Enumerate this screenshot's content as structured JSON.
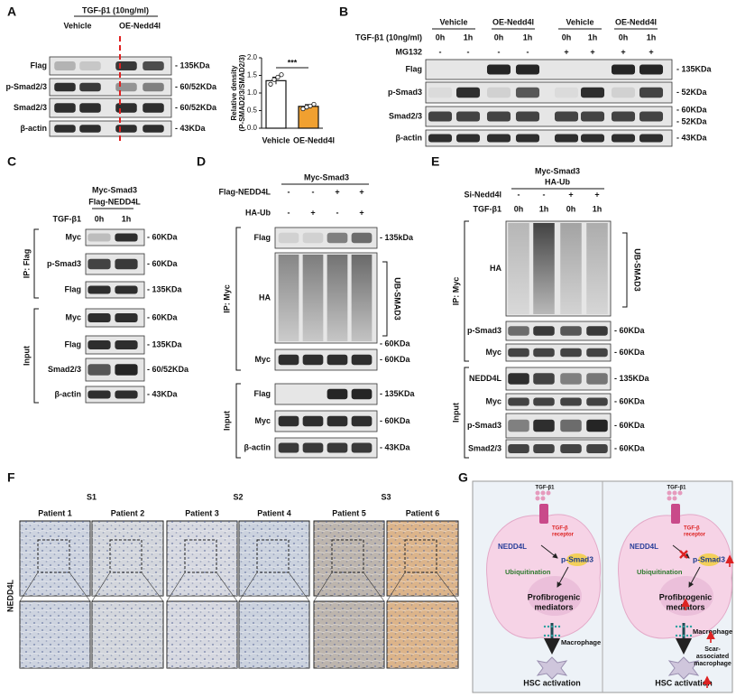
{
  "panel_A": {
    "letter": "A",
    "treatment": "TGF-β1 (10ng/ml)",
    "groups": [
      "Vehicle",
      "OE-Nedd4l"
    ],
    "rows": [
      {
        "label": "Flag",
        "sizes": [
          "- 135KDa"
        ]
      },
      {
        "label": "p-Smad2/3",
        "sizes": [
          "- 60/52KDa"
        ]
      },
      {
        "label": "Smad2/3",
        "sizes": [
          "- 60/52KDa"
        ]
      },
      {
        "label": "β-actin",
        "sizes": [
          "- 43KDa"
        ]
      }
    ]
  },
  "chart_data": {
    "type": "bar",
    "y_label": [
      "Relative density",
      "(P-SMAD2/3/SMAD2/3)"
    ],
    "categories": [
      "Vehicle",
      "OE-Nedd4l"
    ],
    "values": [
      1.35,
      0.62
    ],
    "errors": [
      0.1,
      0.05
    ],
    "points": [
      [
        1.25,
        1.38,
        1.45,
        1.52
      ],
      [
        0.55,
        0.6,
        0.63,
        0.68
      ]
    ],
    "colors": [
      "#ffffff",
      "#f0a030"
    ],
    "ylim": [
      0,
      2
    ],
    "yticks": [
      {
        "value": 0,
        "label": "0.0"
      },
      0.5,
      {
        "value": 1,
        "label": "1.0"
      },
      1.5,
      {
        "value": 2,
        "label": "2.0"
      }
    ],
    "annotation": "***"
  },
  "panel_B": {
    "letter": "B",
    "groups": [
      "Vehicle",
      "OE-Nedd4l",
      "Vehicle",
      "OE-Nedd4l"
    ],
    "conditions": [
      {
        "label": "TGF-β1 (10ng/ml)",
        "values": [
          "0h",
          "1h",
          "0h",
          "1h",
          "0h",
          "1h",
          "0h",
          "1h"
        ]
      },
      {
        "label": "MG132",
        "values": [
          "-",
          "-",
          "-",
          "-",
          "+",
          "+",
          "+",
          "+"
        ]
      }
    ],
    "rows": [
      {
        "label": "Flag",
        "sizes": [
          "- 135KDa"
        ]
      },
      {
        "label": "p-Smad3",
        "sizes": [
          "- 52KDa"
        ]
      },
      {
        "label": "Smad2/3",
        "sizes": [
          "- 60KDa",
          "- 52KDa"
        ]
      },
      {
        "label": "β-actin",
        "sizes": [
          "- 43KDa"
        ]
      }
    ]
  },
  "panel_C": {
    "letter": "C",
    "header": [
      "Myc-Smad3",
      "Flag-NEDD4L"
    ],
    "conditions": [
      {
        "label": "TGF-β1",
        "values": [
          "0h",
          "1h"
        ]
      }
    ],
    "rows": [
      {
        "label": "Myc",
        "sizes": [
          "- 60KDa"
        ]
      },
      {
        "label": "p-Smad3",
        "sizes": [
          "- 60KDa"
        ]
      },
      {
        "label": "Flag",
        "sizes": [
          "- 135KDa"
        ]
      },
      {
        "label": "Myc",
        "sizes": [
          "- 60KDa"
        ]
      },
      {
        "label": "Flag",
        "sizes": [
          "- 135KDa"
        ]
      },
      {
        "label": "Smad2/3",
        "sizes": [
          "- 60/52KDa"
        ]
      },
      {
        "label": "β-actin",
        "sizes": [
          "- 43KDa"
        ]
      }
    ],
    "sides": [
      "IP: Flag",
      "Input"
    ]
  },
  "panel_D": {
    "letter": "D",
    "header": [
      "Myc-Smad3"
    ],
    "conditions": [
      {
        "label": "Flag-NEDD4L",
        "values": [
          "-",
          "-",
          "+",
          "+"
        ]
      },
      {
        "label": "HA-Ub",
        "values": [
          "-",
          "+",
          "-",
          "+"
        ]
      }
    ],
    "rows": [
      {
        "label": "Flag",
        "sizes": [
          "- 135kDa"
        ]
      },
      {
        "label": "HA",
        "sizes": [
          "- 60KDa"
        ]
      },
      {
        "label": "Myc",
        "sizes": [
          "- 60KDa"
        ]
      },
      {
        "label": "Flag",
        "sizes": [
          "- 135KDa"
        ]
      },
      {
        "label": "Myc",
        "sizes": [
          "- 60KDa"
        ]
      },
      {
        "label": "β-actin",
        "sizes": [
          "- 43KDa"
        ]
      }
    ],
    "bracket": "UB-SMAD3",
    "sides": [
      "IP: Myc",
      "Input"
    ]
  },
  "panel_E": {
    "letter": "E",
    "header": [
      "Myc-Smad3",
      "HA-Ub"
    ],
    "conditions": [
      {
        "label": "Si-Nedd4l",
        "values": [
          "-",
          "-",
          "+",
          "+"
        ]
      },
      {
        "label": "TGF-β1",
        "values": [
          "0h",
          "1h",
          "0h",
          "1h"
        ]
      }
    ],
    "rows": [
      {
        "label": "HA",
        "sizes": []
      },
      {
        "label": "p-Smad3",
        "sizes": [
          "- 60KDa"
        ]
      },
      {
        "label": "Myc",
        "sizes": [
          "- 60KDa"
        ]
      },
      {
        "label": "NEDD4L",
        "sizes": [
          "- 135KDa"
        ]
      },
      {
        "label": "Myc",
        "sizes": [
          "- 60KDa"
        ]
      },
      {
        "label": "p-Smad3",
        "sizes": [
          "- 60KDa"
        ]
      },
      {
        "label": "Smad2/3",
        "sizes": [
          "- 60KDa"
        ]
      }
    ],
    "bracket": "UB-SMAD3",
    "sides": [
      "IP: Myc",
      "Input"
    ]
  },
  "panel_F": {
    "letter": "F",
    "row_label": "NEDD4L",
    "stages": [
      {
        "label": "S1",
        "patients": [
          "Patient 1",
          "Patient 2"
        ]
      },
      {
        "label": "S2",
        "patients": [
          "Patient 3",
          "Patient 4"
        ]
      },
      {
        "label": "S3",
        "patients": [
          "Patient 5",
          "Patient 6"
        ]
      }
    ]
  },
  "panel_G": {
    "letter": "G",
    "left": {
      "ligand": "TGF-β1",
      "receptor": [
        "TGF-β",
        "receptor"
      ],
      "e3": "NEDD4L",
      "target": "p-Smad3",
      "process": "Ubiquitination",
      "mediators": [
        "Profibrogenic",
        "mediators"
      ],
      "macrophage": "Macrophage",
      "outcome": "HSC activation"
    },
    "right": {
      "ligand": "TGF-β1",
      "receptor": [
        "TGF-β",
        "receptor"
      ],
      "e3": "NEDD4L",
      "target": "p-Smad3",
      "process": "Ubiquitination",
      "mediators": [
        "Profibrogenic",
        "mediators"
      ],
      "macrophage": "Macrophage",
      "scar_macrophage": [
        "Scar-",
        "associated",
        "macrophage"
      ],
      "outcome": "HSC activation"
    }
  }
}
